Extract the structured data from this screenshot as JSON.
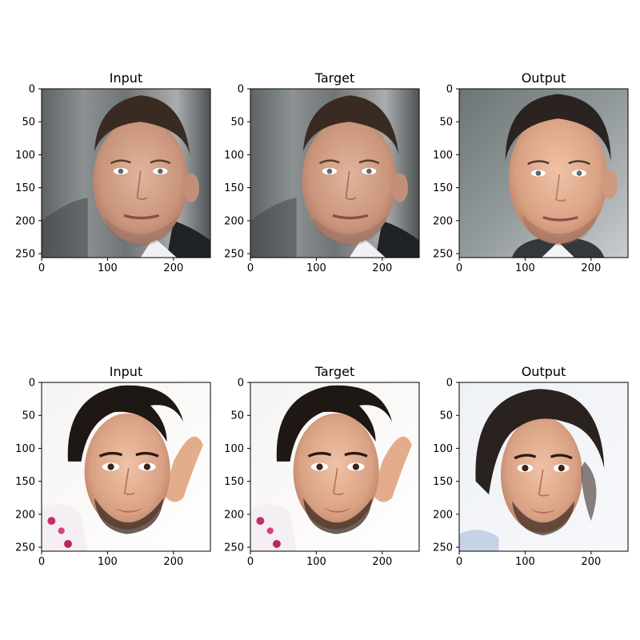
{
  "colors": {
    "background": "#ffffff",
    "axes_frame": "#000000"
  },
  "chart_data": {
    "type": "image_grid",
    "rows": 2,
    "cols": 3,
    "panels": [
      {
        "title": "Input",
        "image": "face-portrait-man-grey-background",
        "xlim": [
          0,
          256
        ],
        "ylim": [
          256,
          0
        ],
        "xticks": [
          0,
          100,
          200
        ],
        "yticks": [
          0,
          50,
          100,
          150,
          200,
          250
        ]
      },
      {
        "title": "Target",
        "image": "face-portrait-man-grey-background",
        "xlim": [
          0,
          256
        ],
        "ylim": [
          256,
          0
        ],
        "xticks": [
          0,
          100,
          200
        ],
        "yticks": [
          0,
          50,
          100,
          150,
          200,
          250
        ]
      },
      {
        "title": "Output",
        "image": "generated-face-man-grey-background",
        "xlim": [
          0,
          256
        ],
        "ylim": [
          256,
          0
        ],
        "xticks": [
          0,
          100,
          200
        ],
        "yticks": [
          0,
          50,
          100,
          150,
          200,
          250
        ]
      },
      {
        "title": "Input",
        "image": "face-portrait-man-white-background",
        "xlim": [
          0,
          256
        ],
        "ylim": [
          256,
          0
        ],
        "xticks": [
          0,
          100,
          200
        ],
        "yticks": [
          0,
          50,
          100,
          150,
          200,
          250
        ]
      },
      {
        "title": "Target",
        "image": "face-portrait-man-white-background",
        "xlim": [
          0,
          256
        ],
        "ylim": [
          256,
          0
        ],
        "xticks": [
          0,
          100,
          200
        ],
        "yticks": [
          0,
          50,
          100,
          150,
          200,
          250
        ]
      },
      {
        "title": "Output",
        "image": "generated-face-man-white-background",
        "xlim": [
          0,
          256
        ],
        "ylim": [
          256,
          0
        ],
        "xticks": [
          0,
          100,
          200
        ],
        "yticks": [
          0,
          50,
          100,
          150,
          200,
          250
        ]
      }
    ]
  }
}
